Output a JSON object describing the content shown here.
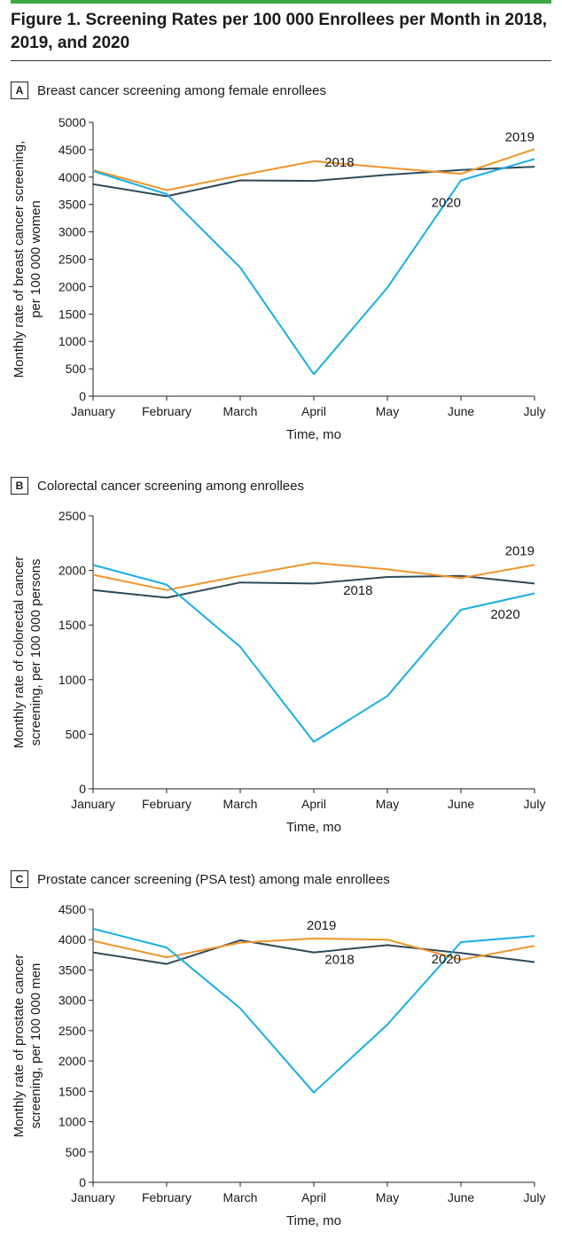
{
  "figure": {
    "title": "Figure 1. Screening Rates per 100 000 Enrollees per Month in 2018, 2019, and 2020"
  },
  "colors": {
    "2018": "#2e4a5a",
    "2019": "#f0952a",
    "2020": "#1aaee5",
    "accent": "#3aa843"
  },
  "chart_data": [
    {
      "type": "line",
      "panel": "A",
      "title": "Breast cancer screening among female enrollees",
      "xlabel": "Time, mo",
      "ylabel": "Monthly rate of breast cancer screening, per 100 000 women",
      "categories": [
        "January",
        "February",
        "March",
        "April",
        "May",
        "June",
        "July"
      ],
      "ylim": [
        0,
        5000
      ],
      "yticks": [
        0,
        500,
        1000,
        1500,
        2000,
        2500,
        3000,
        3500,
        4000,
        4500,
        5000
      ],
      "grid": false,
      "series": [
        {
          "name": "2018",
          "values": [
            3870,
            3650,
            3940,
            3930,
            4040,
            4130,
            4190
          ]
        },
        {
          "name": "2019",
          "values": [
            4130,
            3760,
            4030,
            4290,
            4170,
            4060,
            4510
          ]
        },
        {
          "name": "2020",
          "values": [
            4110,
            3690,
            2350,
            400,
            1980,
            3940,
            4330
          ]
        }
      ]
    },
    {
      "type": "line",
      "panel": "B",
      "title": "Colorectal cancer screening among enrollees",
      "xlabel": "Time, mo",
      "ylabel": "Monthly rate of colorectal cancer screening, per 100 000 persons",
      "categories": [
        "January",
        "February",
        "March",
        "April",
        "May",
        "June",
        "July"
      ],
      "ylim": [
        0,
        2500
      ],
      "yticks": [
        0,
        500,
        1000,
        1500,
        2000,
        2500
      ],
      "grid": false,
      "series": [
        {
          "name": "2018",
          "values": [
            1820,
            1750,
            1890,
            1880,
            1940,
            1950,
            1880
          ]
        },
        {
          "name": "2019",
          "values": [
            1960,
            1820,
            1950,
            2070,
            2010,
            1930,
            2050
          ]
        },
        {
          "name": "2020",
          "values": [
            2050,
            1870,
            1300,
            430,
            850,
            1640,
            1790
          ]
        }
      ]
    },
    {
      "type": "line",
      "panel": "C",
      "title": "Prostate cancer screening (PSA test) among male enrollees",
      "xlabel": "Time, mo",
      "ylabel": "Monthly rate of prostate cancer screening, per 100 000 men",
      "categories": [
        "January",
        "February",
        "March",
        "April",
        "May",
        "June",
        "July"
      ],
      "ylim": [
        0,
        4500
      ],
      "yticks": [
        0,
        500,
        1000,
        1500,
        2000,
        2500,
        3000,
        3500,
        4000,
        4500
      ],
      "grid": false,
      "series": [
        {
          "name": "2018",
          "values": [
            3790,
            3600,
            3990,
            3790,
            3910,
            3780,
            3630
          ]
        },
        {
          "name": "2019",
          "values": [
            3980,
            3710,
            3950,
            4020,
            4000,
            3670,
            3900
          ]
        },
        {
          "name": "2020",
          "values": [
            4180,
            3870,
            2870,
            1480,
            2600,
            3960,
            4060
          ]
        }
      ]
    }
  ],
  "panels_ylabel_lines": [
    [
      "Monthly rate of breast cancer screening,",
      "per 100 000 women"
    ],
    [
      "Monthly rate of colorectal cancer",
      "screening, per 100 000 persons"
    ],
    [
      "Monthly rate of prostate cancer",
      "screening, per 100 000 men"
    ]
  ]
}
